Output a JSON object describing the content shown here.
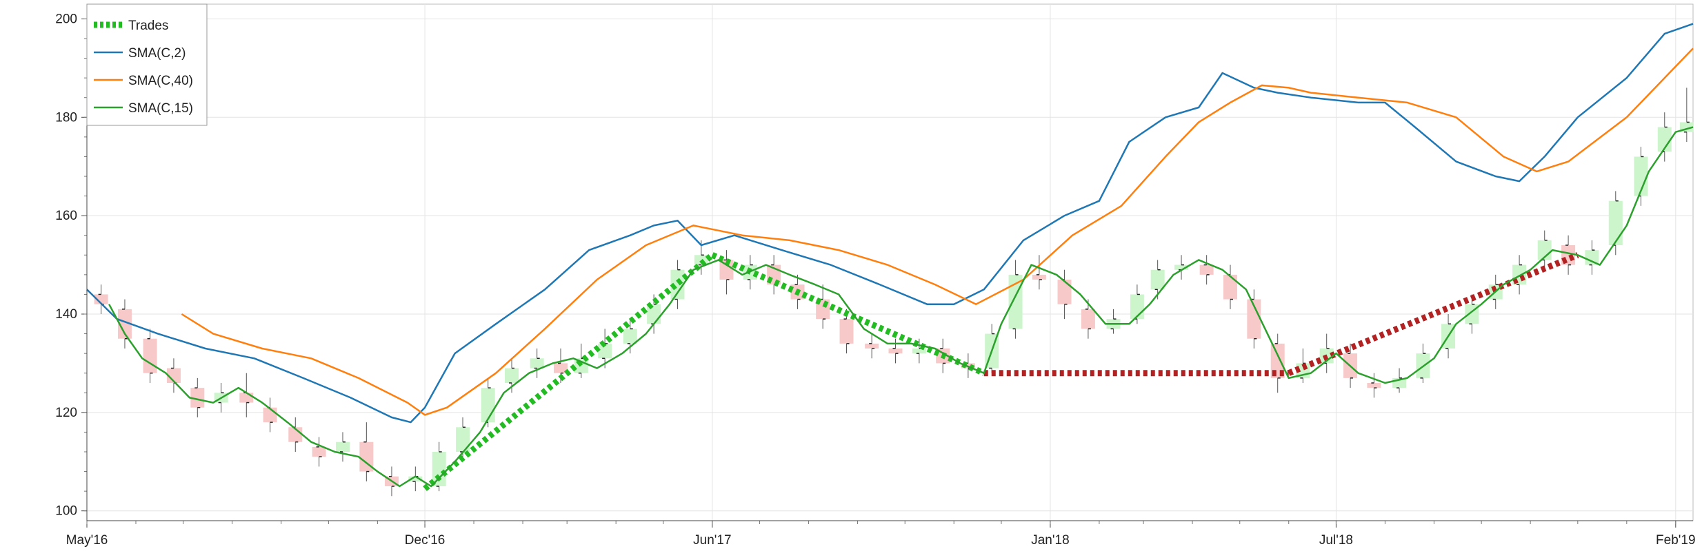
{
  "chart_data": {
    "type": "line",
    "title": "",
    "xlabel": "",
    "ylabel": "",
    "ylim": [
      98,
      203
    ],
    "xlim": [
      "2016-05-01",
      "2019-02-12"
    ],
    "grid": true,
    "legend_placement": "top-left",
    "y_ticks": [
      100,
      120,
      140,
      160,
      180,
      200
    ],
    "x_ticks": [
      {
        "date": "2016-05-01",
        "label": "May'16"
      },
      {
        "date": "2016-12-01",
        "label": "Dec'16"
      },
      {
        "date": "2017-06-01",
        "label": "Jun'17"
      },
      {
        "date": "2018-01-01",
        "label": "Jan'18"
      },
      {
        "date": "2018-07-01",
        "label": "Jul'18"
      },
      {
        "date": "2019-02-01",
        "label": "Feb'19"
      }
    ],
    "legend": [
      {
        "label": "Trades",
        "style": "dashed-thick",
        "color": "#22bb22"
      },
      {
        "label": "SMA(C,2)",
        "style": "line",
        "color": "#1f77b4"
      },
      {
        "label": "SMA(C,40)",
        "style": "line",
        "color": "#ff7f0e"
      },
      {
        "label": "SMA(C,15)",
        "style": "line",
        "color": "#2ca02c"
      }
    ],
    "series": [
      {
        "name": "SMA(C,2)",
        "color": "#1f77b4",
        "points": [
          [
            "2016-05-01",
            145
          ],
          [
            "2016-05-20",
            139
          ],
          [
            "2016-06-15",
            136
          ],
          [
            "2016-07-15",
            133
          ],
          [
            "2016-08-15",
            131
          ],
          [
            "2016-09-15",
            127
          ],
          [
            "2016-10-15",
            123
          ],
          [
            "2016-11-10",
            119
          ],
          [
            "2016-11-22",
            118
          ],
          [
            "2016-12-01",
            121
          ],
          [
            "2016-12-20",
            132
          ],
          [
            "2017-01-15",
            138
          ],
          [
            "2017-02-15",
            145
          ],
          [
            "2017-03-15",
            153
          ],
          [
            "2017-04-10",
            156
          ],
          [
            "2017-04-25",
            158
          ],
          [
            "2017-05-10",
            159
          ],
          [
            "2017-05-25",
            154
          ],
          [
            "2017-06-15",
            156
          ],
          [
            "2017-07-15",
            153
          ],
          [
            "2017-08-15",
            150
          ],
          [
            "2017-09-15",
            146
          ],
          [
            "2017-10-15",
            142
          ],
          [
            "2017-11-01",
            142
          ],
          [
            "2017-11-20",
            145
          ],
          [
            "2017-12-15",
            155
          ],
          [
            "2018-01-10",
            160
          ],
          [
            "2018-02-01",
            163
          ],
          [
            "2018-02-20",
            175
          ],
          [
            "2018-03-15",
            180
          ],
          [
            "2018-04-05",
            182
          ],
          [
            "2018-04-20",
            189
          ],
          [
            "2018-05-10",
            186
          ],
          [
            "2018-05-25",
            185
          ],
          [
            "2018-06-15",
            184
          ],
          [
            "2018-07-15",
            183
          ],
          [
            "2018-08-01",
            183
          ],
          [
            "2018-08-20",
            178
          ],
          [
            "2018-09-15",
            171
          ],
          [
            "2018-10-10",
            168
          ],
          [
            "2018-10-25",
            167
          ],
          [
            "2018-11-10",
            172
          ],
          [
            "2018-12-01",
            180
          ],
          [
            "2019-01-01",
            188
          ],
          [
            "2019-01-25",
            197
          ],
          [
            "2019-02-12",
            199
          ]
        ]
      },
      {
        "name": "SMA(C,40)",
        "color": "#ff7f0e",
        "points": [
          [
            "2016-06-30",
            140
          ],
          [
            "2016-07-20",
            136
          ],
          [
            "2016-08-20",
            133
          ],
          [
            "2016-09-20",
            131
          ],
          [
            "2016-10-20",
            127
          ],
          [
            "2016-11-20",
            122
          ],
          [
            "2016-12-01",
            119.5
          ],
          [
            "2016-12-15",
            121
          ],
          [
            "2017-01-15",
            128
          ],
          [
            "2017-02-15",
            137
          ],
          [
            "2017-03-20",
            147
          ],
          [
            "2017-04-20",
            154
          ],
          [
            "2017-05-20",
            158
          ],
          [
            "2017-06-20",
            156
          ],
          [
            "2017-07-20",
            155
          ],
          [
            "2017-08-20",
            153
          ],
          [
            "2017-09-20",
            150
          ],
          [
            "2017-10-20",
            146
          ],
          [
            "2017-11-15",
            142
          ],
          [
            "2017-12-15",
            147
          ],
          [
            "2018-01-15",
            156
          ],
          [
            "2018-02-15",
            162
          ],
          [
            "2018-03-15",
            172
          ],
          [
            "2018-04-05",
            179
          ],
          [
            "2018-04-25",
            183
          ],
          [
            "2018-05-15",
            186.5
          ],
          [
            "2018-06-01",
            186
          ],
          [
            "2018-06-15",
            185
          ],
          [
            "2018-07-15",
            184
          ],
          [
            "2018-08-15",
            183
          ],
          [
            "2018-09-15",
            180
          ],
          [
            "2018-10-15",
            172
          ],
          [
            "2018-11-05",
            169
          ],
          [
            "2018-11-25",
            171
          ],
          [
            "2019-01-01",
            180
          ],
          [
            "2019-02-12",
            194
          ]
        ]
      },
      {
        "name": "SMA(C,15)",
        "color": "#2ca02c",
        "points": [
          [
            "2016-05-15",
            142
          ],
          [
            "2016-05-25",
            136
          ],
          [
            "2016-06-05",
            131
          ],
          [
            "2016-06-20",
            128
          ],
          [
            "2016-07-05",
            123
          ],
          [
            "2016-07-20",
            122
          ],
          [
            "2016-08-05",
            125
          ],
          [
            "2016-08-20",
            122
          ],
          [
            "2016-09-05",
            118
          ],
          [
            "2016-09-20",
            114
          ],
          [
            "2016-10-05",
            112
          ],
          [
            "2016-10-20",
            111
          ],
          [
            "2016-11-01",
            108
          ],
          [
            "2016-11-15",
            105
          ],
          [
            "2016-11-25",
            107
          ],
          [
            "2016-12-05",
            105
          ],
          [
            "2016-12-20",
            110
          ],
          [
            "2017-01-05",
            116
          ],
          [
            "2017-01-20",
            124
          ],
          [
            "2017-02-05",
            128
          ],
          [
            "2017-02-20",
            130
          ],
          [
            "2017-03-05",
            131
          ],
          [
            "2017-03-20",
            129
          ],
          [
            "2017-04-05",
            132
          ],
          [
            "2017-04-20",
            136
          ],
          [
            "2017-05-05",
            142
          ],
          [
            "2017-05-20",
            149
          ],
          [
            "2017-06-05",
            151
          ],
          [
            "2017-06-20",
            148
          ],
          [
            "2017-07-05",
            150
          ],
          [
            "2017-07-20",
            148
          ],
          [
            "2017-08-05",
            146
          ],
          [
            "2017-08-20",
            144
          ],
          [
            "2017-09-05",
            137
          ],
          [
            "2017-09-20",
            134
          ],
          [
            "2017-10-05",
            134
          ],
          [
            "2017-10-20",
            133
          ],
          [
            "2017-11-05",
            130
          ],
          [
            "2017-11-20",
            128
          ],
          [
            "2017-12-01",
            138
          ],
          [
            "2017-12-20",
            150
          ],
          [
            "2018-01-05",
            148
          ],
          [
            "2018-01-20",
            144
          ],
          [
            "2018-02-05",
            138
          ],
          [
            "2018-02-20",
            138
          ],
          [
            "2018-03-05",
            142
          ],
          [
            "2018-03-20",
            148
          ],
          [
            "2018-04-05",
            151
          ],
          [
            "2018-04-20",
            149
          ],
          [
            "2018-05-05",
            145
          ],
          [
            "2018-05-20",
            135
          ],
          [
            "2018-06-01",
            127
          ],
          [
            "2018-06-15",
            128
          ],
          [
            "2018-07-01",
            132
          ],
          [
            "2018-07-15",
            128
          ],
          [
            "2018-08-01",
            126
          ],
          [
            "2018-08-15",
            127
          ],
          [
            "2018-09-01",
            131
          ],
          [
            "2018-09-15",
            138
          ],
          [
            "2018-10-01",
            142
          ],
          [
            "2018-10-15",
            146
          ],
          [
            "2018-11-01",
            149
          ],
          [
            "2018-11-15",
            153
          ],
          [
            "2018-12-01",
            152
          ],
          [
            "2018-12-15",
            150
          ],
          [
            "2019-01-01",
            158
          ],
          [
            "2019-01-15",
            169
          ],
          [
            "2019-02-01",
            177
          ],
          [
            "2019-02-12",
            178
          ]
        ]
      }
    ],
    "trades": [
      {
        "outcome": "win",
        "color": "#22bb22",
        "start": [
          "2016-12-01",
          104.5
        ],
        "end": [
          "2017-06-01",
          152
        ]
      },
      {
        "outcome": "win",
        "color": "#22bb22",
        "start": [
          "2017-06-01",
          152
        ],
        "end": [
          "2017-11-20",
          128
        ]
      },
      {
        "outcome": "loss",
        "color": "#b22222",
        "start": [
          "2017-11-20",
          128
        ],
        "end": [
          "2018-06-01",
          128
        ]
      },
      {
        "outcome": "loss",
        "color": "#b22222",
        "start": [
          "2018-06-01",
          128
        ],
        "end": [
          "2018-12-01",
          152
        ]
      }
    ],
    "candles": [
      [
        "2016-05-10",
        144,
        142,
        146,
        140
      ],
      [
        "2016-05-25",
        141,
        135,
        143,
        133
      ],
      [
        "2016-06-10",
        135,
        128,
        137,
        126
      ],
      [
        "2016-06-25",
        129,
        126,
        131,
        124
      ],
      [
        "2016-07-10",
        125,
        121,
        127,
        119
      ],
      [
        "2016-07-25",
        122,
        124,
        126,
        120
      ],
      [
        "2016-08-10",
        124,
        122,
        128,
        119
      ],
      [
        "2016-08-25",
        121,
        118,
        123,
        116
      ],
      [
        "2016-09-10",
        117,
        114,
        119,
        112
      ],
      [
        "2016-09-25",
        113,
        111,
        115,
        109
      ],
      [
        "2016-10-10",
        112,
        114,
        116,
        110
      ],
      [
        "2016-10-25",
        114,
        108,
        118,
        106
      ],
      [
        "2016-11-10",
        107,
        105,
        109,
        103
      ],
      [
        "2016-11-25",
        106,
        107,
        109,
        104
      ],
      [
        "2016-12-10",
        105,
        112,
        114,
        104
      ],
      [
        "2016-12-25",
        112,
        117,
        119,
        111
      ],
      [
        "2017-01-10",
        118,
        125,
        127,
        117
      ],
      [
        "2017-01-25",
        126,
        129,
        131,
        124
      ],
      [
        "2017-02-10",
        129,
        131,
        133,
        127
      ],
      [
        "2017-02-25",
        130,
        128,
        133,
        126
      ],
      [
        "2017-03-10",
        128,
        131,
        134,
        127
      ],
      [
        "2017-03-25",
        131,
        134,
        137,
        129
      ],
      [
        "2017-04-10",
        134,
        137,
        139,
        132
      ],
      [
        "2017-04-25",
        138,
        142,
        144,
        136
      ],
      [
        "2017-05-10",
        143,
        149,
        151,
        141
      ],
      [
        "2017-05-25",
        150,
        152,
        155,
        148
      ],
      [
        "2017-06-10",
        151,
        147,
        153,
        144
      ],
      [
        "2017-06-25",
        147,
        150,
        152,
        145
      ],
      [
        "2017-07-10",
        150,
        146,
        152,
        144
      ],
      [
        "2017-07-25",
        146,
        143,
        148,
        141
      ],
      [
        "2017-08-10",
        143,
        139,
        146,
        137
      ],
      [
        "2017-08-25",
        139,
        134,
        141,
        132
      ],
      [
        "2017-09-10",
        134,
        133,
        136,
        131
      ],
      [
        "2017-09-25",
        133,
        132,
        135,
        130
      ],
      [
        "2017-10-10",
        132,
        133,
        135,
        130
      ],
      [
        "2017-10-25",
        133,
        130,
        135,
        128
      ],
      [
        "2017-11-10",
        130,
        129,
        132,
        127
      ],
      [
        "2017-11-25",
        129,
        136,
        138,
        128
      ],
      [
        "2017-12-10",
        137,
        148,
        151,
        135
      ],
      [
        "2017-12-25",
        148,
        147,
        152,
        145
      ],
      [
        "2018-01-10",
        147,
        142,
        149,
        139
      ],
      [
        "2018-01-25",
        141,
        137,
        143,
        135
      ],
      [
        "2018-02-10",
        137,
        139,
        141,
        136
      ],
      [
        "2018-02-25",
        139,
        144,
        146,
        138
      ],
      [
        "2018-03-10",
        145,
        149,
        151,
        143
      ],
      [
        "2018-03-25",
        149,
        150,
        152,
        147
      ],
      [
        "2018-04-10",
        150,
        148,
        152,
        146
      ],
      [
        "2018-04-25",
        148,
        143,
        150,
        141
      ],
      [
        "2018-05-10",
        143,
        135,
        145,
        133
      ],
      [
        "2018-05-25",
        134,
        127,
        136,
        124
      ],
      [
        "2018-06-10",
        127,
        130,
        133,
        126
      ],
      [
        "2018-06-25",
        130,
        133,
        136,
        128
      ],
      [
        "2018-07-10",
        132,
        127,
        134,
        125
      ],
      [
        "2018-07-25",
        126,
        125,
        128,
        123
      ],
      [
        "2018-08-10",
        125,
        127,
        129,
        124
      ],
      [
        "2018-08-25",
        127,
        132,
        134,
        126
      ],
      [
        "2018-09-10",
        133,
        138,
        140,
        131
      ],
      [
        "2018-09-25",
        138,
        142,
        144,
        136
      ],
      [
        "2018-10-10",
        143,
        146,
        148,
        141
      ],
      [
        "2018-10-25",
        146,
        150,
        152,
        144
      ],
      [
        "2018-11-10",
        151,
        155,
        157,
        149
      ],
      [
        "2018-11-25",
        154,
        150,
        156,
        148
      ],
      [
        "2018-12-10",
        150,
        153,
        155,
        148
      ],
      [
        "2018-12-25",
        154,
        163,
        165,
        152
      ],
      [
        "2019-01-10",
        164,
        172,
        174,
        162
      ],
      [
        "2019-01-25",
        173,
        178,
        181,
        171
      ],
      [
        "2019-02-08",
        177,
        179,
        186,
        175
      ]
    ]
  }
}
